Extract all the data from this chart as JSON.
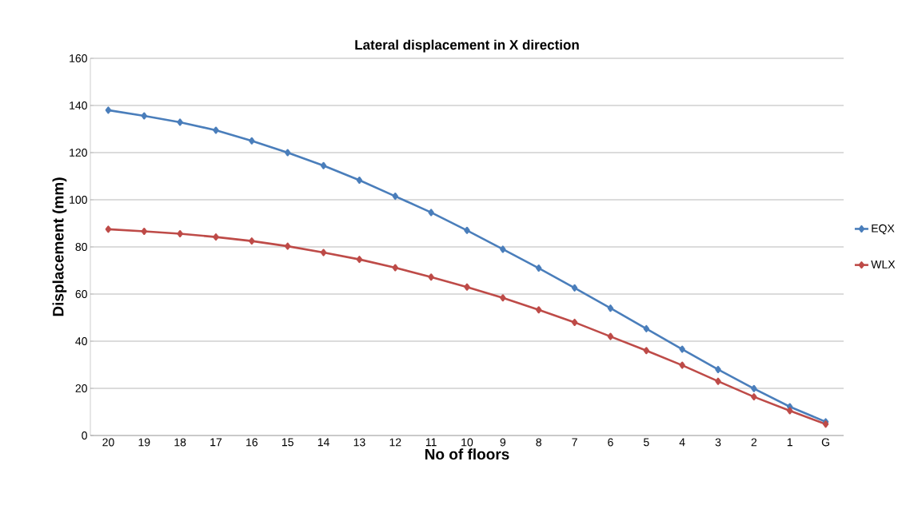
{
  "chart_data": {
    "type": "line",
    "title": "Lateral displacement in X direction",
    "xlabel": "No of floors",
    "ylabel": "Displacement (mm)",
    "categories": [
      "20",
      "19",
      "18",
      "17",
      "16",
      "15",
      "14",
      "13",
      "12",
      "11",
      "10",
      "9",
      "8",
      "7",
      "6",
      "5",
      "4",
      "3",
      "2",
      "1",
      "G"
    ],
    "series": [
      {
        "name": "EQX",
        "color": "#4a7ebb",
        "values": [
          138,
          135.6,
          132.9,
          129.5,
          125,
          120,
          114.5,
          108.3,
          101.5,
          94.6,
          87,
          79,
          71,
          62.6,
          54,
          45.3,
          36.6,
          28,
          19.9,
          12.2,
          5.8
        ]
      },
      {
        "name": "WLX",
        "color": "#be4b48",
        "values": [
          87.5,
          86.6,
          85.6,
          84.2,
          82.5,
          80.3,
          77.6,
          74.7,
          71.2,
          67.2,
          63,
          58.4,
          53.3,
          48,
          42,
          36,
          29.8,
          23,
          16.4,
          10.5,
          4.8
        ]
      }
    ],
    "ylim": [
      0,
      160
    ],
    "yticks": [
      0,
      20,
      40,
      60,
      80,
      100,
      120,
      140,
      160
    ],
    "grid": "y",
    "legend": "right",
    "marker": "diamond",
    "line_style": "solid"
  }
}
